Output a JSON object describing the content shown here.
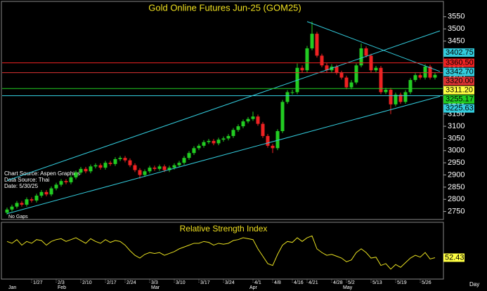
{
  "chart_data": {
    "type": "candlestick",
    "title": "Gold Online Futures Jun-25 (GOM25)",
    "annotations": [
      "Chart Source: Aspen Graphics",
      "Data Source: Thai",
      "Date:    5/30/25",
      "No Gaps"
    ],
    "x_unit_label": "Day",
    "categories": [
      null,
      null,
      null,
      null,
      null,
      "1/27",
      null,
      null,
      null,
      null,
      "2/3",
      null,
      null,
      null,
      null,
      "2/10",
      null,
      null,
      null,
      null,
      "2/17",
      null,
      null,
      null,
      "2/24",
      null,
      null,
      null,
      null,
      "3/3",
      null,
      null,
      null,
      null,
      "3/10",
      null,
      null,
      null,
      null,
      "3/17",
      null,
      null,
      null,
      null,
      "3/24",
      null,
      null,
      null,
      null,
      null,
      "4/1",
      null,
      null,
      null,
      "4/8",
      null,
      null,
      null,
      "4/16",
      null,
      null,
      "4/21",
      null,
      null,
      null,
      null,
      "4/28",
      null,
      null,
      "5/2",
      null,
      null,
      null,
      null,
      "5/13",
      null,
      null,
      null,
      null,
      "5/19",
      null,
      null,
      null,
      null,
      "5/26",
      null,
      null,
      null
    ],
    "months": [
      "Jan",
      null,
      null,
      null,
      null,
      null,
      null,
      null,
      null,
      null,
      "Feb",
      null,
      null,
      null,
      null,
      null,
      null,
      null,
      null,
      null,
      null,
      null,
      null,
      null,
      null,
      null,
      null,
      null,
      null,
      "Mar",
      null,
      null,
      null,
      null,
      null,
      null,
      null,
      null,
      null,
      null,
      null,
      null,
      null,
      null,
      null,
      null,
      null,
      null,
      null,
      "Apr",
      null,
      null,
      null,
      null,
      null,
      null,
      null,
      null,
      null,
      null,
      null,
      null,
      null,
      null,
      null,
      null,
      null,
      null,
      "May",
      null,
      null,
      null,
      null,
      null,
      null,
      null,
      null,
      null,
      null,
      null,
      null,
      null,
      null,
      null,
      null,
      null,
      null
    ],
    "open": [
      2745,
      2758,
      2770,
      2785,
      2778,
      2800,
      2795,
      2815,
      2830,
      2820,
      2845,
      2860,
      2875,
      2870,
      2890,
      2910,
      2925,
      2915,
      2935,
      2940,
      2930,
      2950,
      2945,
      2965,
      2970,
      2960,
      2940,
      2920,
      2900,
      2915,
      2930,
      2925,
      2935,
      2920,
      2930,
      2940,
      2950,
      2970,
      2990,
      3010,
      3020,
      3035,
      3040,
      3030,
      3045,
      3050,
      3060,
      3085,
      3100,
      3120,
      3130,
      3140,
      3110,
      3060,
      3020,
      3010,
      3080,
      3200,
      3240,
      3240,
      3340,
      3330,
      3420,
      3480,
      3390,
      3350,
      3330,
      3345,
      3320,
      3300,
      3260,
      3280,
      3350,
      3420,
      3390,
      3330,
      3340,
      3240,
      3250,
      3190,
      3230,
      3200,
      3240,
      3290,
      3310,
      3300,
      3345,
      3300
    ],
    "high": [
      2766,
      2778,
      2793,
      2793,
      2808,
      2808,
      2823,
      2838,
      2838,
      2853,
      2868,
      2883,
      2883,
      2898,
      2918,
      2933,
      2933,
      2943,
      2948,
      2948,
      2958,
      2958,
      2973,
      2978,
      2978,
      2968,
      2948,
      2928,
      2923,
      2938,
      2938,
      2943,
      2943,
      2938,
      2948,
      2958,
      2978,
      2998,
      3018,
      3028,
      3043,
      3048,
      3048,
      3053,
      3058,
      3068,
      3093,
      3108,
      3128,
      3138,
      3160,
      3148,
      3118,
      3068,
      3028,
      3088,
      3208,
      3248,
      3250,
      3358,
      3350,
      3430,
      3530,
      3488,
      3398,
      3360,
      3355,
      3353,
      3328,
      3308,
      3290,
      3358,
      3440,
      3428,
      3398,
      3348,
      3348,
      3258,
      3258,
      3238,
      3238,
      3248,
      3298,
      3318,
      3318,
      3355,
      3353,
      3320
    ],
    "low": [
      2737,
      2750,
      2762,
      2770,
      2770,
      2787,
      2787,
      2807,
      2812,
      2812,
      2837,
      2852,
      2862,
      2862,
      2882,
      2902,
      2907,
      2907,
      2927,
      2922,
      2922,
      2937,
      2937,
      2957,
      2952,
      2932,
      2912,
      2885,
      2892,
      2907,
      2917,
      2917,
      2912,
      2912,
      2922,
      2932,
      2942,
      2962,
      2982,
      3002,
      3012,
      3027,
      3022,
      3022,
      3037,
      3042,
      3052,
      3077,
      3092,
      3112,
      3122,
      3102,
      3052,
      3012,
      2990,
      3002,
      3072,
      3192,
      3230,
      3232,
      3320,
      3322,
      3412,
      3382,
      3342,
      3320,
      3322,
      3312,
      3292,
      3252,
      3252,
      3272,
      3342,
      3382,
      3322,
      3322,
      3232,
      3232,
      3150,
      3182,
      3192,
      3192,
      3232,
      3282,
      3292,
      3292,
      3292,
      3292
    ],
    "close": [
      2758,
      2770,
      2785,
      2778,
      2800,
      2795,
      2815,
      2830,
      2820,
      2845,
      2860,
      2875,
      2870,
      2890,
      2910,
      2925,
      2915,
      2935,
      2940,
      2930,
      2950,
      2945,
      2965,
      2970,
      2960,
      2940,
      2920,
      2900,
      2915,
      2930,
      2925,
      2935,
      2920,
      2930,
      2940,
      2950,
      2970,
      2990,
      3010,
      3020,
      3035,
      3040,
      3030,
      3045,
      3050,
      3060,
      3085,
      3100,
      3120,
      3130,
      3140,
      3110,
      3060,
      3020,
      3010,
      3080,
      3200,
      3240,
      3240,
      3340,
      3330,
      3420,
      3480,
      3390,
      3350,
      3330,
      3345,
      3320,
      3300,
      3260,
      3280,
      3350,
      3420,
      3390,
      3330,
      3340,
      3240,
      3250,
      3190,
      3230,
      3200,
      3240,
      3290,
      3310,
      3300,
      3345,
      3300,
      3311.2
    ],
    "up_color": "#22cc22",
    "down_color": "#ee2222",
    "ylim": [
      2720,
      3610
    ],
    "yticks": [
      2750,
      2800,
      2850,
      2900,
      2950,
      3000,
      3050,
      3100,
      3150,
      3200,
      3250,
      3300,
      3350,
      3400,
      3450,
      3500,
      3550
    ],
    "trendlines": [
      {
        "x": [
          0,
          88
        ],
        "y": [
          2741,
          3223
        ],
        "color": "#33ccdd"
      },
      {
        "x": [
          0,
          88
        ],
        "y": [
          2877,
          3492
        ],
        "color": "#33ccdd"
      },
      {
        "x": [
          61,
          88
        ],
        "y": [
          3530,
          3325
        ],
        "color": "#33ccdd"
      }
    ],
    "levels": [
      {
        "value": 3402.75,
        "label": "3402.75",
        "color": "#33ccdd",
        "line": false
      },
      {
        "value": 3360.5,
        "label": "3360.50",
        "color": "#ee2222",
        "line": true
      },
      {
        "value": 3342.7,
        "label": "3342.70",
        "color": "#33ccdd",
        "line": false
      },
      {
        "value": 3320,
        "label": "3320.00",
        "color": "#dd3333",
        "line": true
      },
      {
        "value": 3311.2,
        "label": "3311.20",
        "color": "#ffff44",
        "line": false
      },
      {
        "value": 3255.17,
        "label": "3255.17",
        "color": "#22cc22",
        "line": true
      },
      {
        "value": 3225.63,
        "label": "3225.63",
        "color": "#33ccdd",
        "line": true
      }
    ],
    "rsi": {
      "title": "Relative Strength Index",
      "color": "#e8e020",
      "ylim": [
        30,
        90
      ],
      "values": [
        70,
        68,
        72,
        66,
        70,
        68,
        72,
        71,
        66,
        70,
        72,
        73,
        70,
        72,
        74,
        71,
        68,
        73,
        70,
        68,
        72,
        69,
        71,
        70,
        66,
        60,
        55,
        52,
        56,
        58,
        57,
        58,
        55,
        57,
        59,
        62,
        64,
        66,
        68,
        68,
        70,
        69,
        66,
        68,
        67,
        68,
        71,
        72,
        74,
        73,
        72,
        62,
        54,
        46,
        44,
        56,
        66,
        70,
        69,
        74,
        70,
        74,
        76,
        62,
        58,
        55,
        56,
        54,
        52,
        48,
        50,
        58,
        62,
        58,
        52,
        53,
        44,
        46,
        40,
        45,
        42,
        47,
        52,
        55,
        53,
        58,
        51,
        52.43
      ]
    }
  }
}
